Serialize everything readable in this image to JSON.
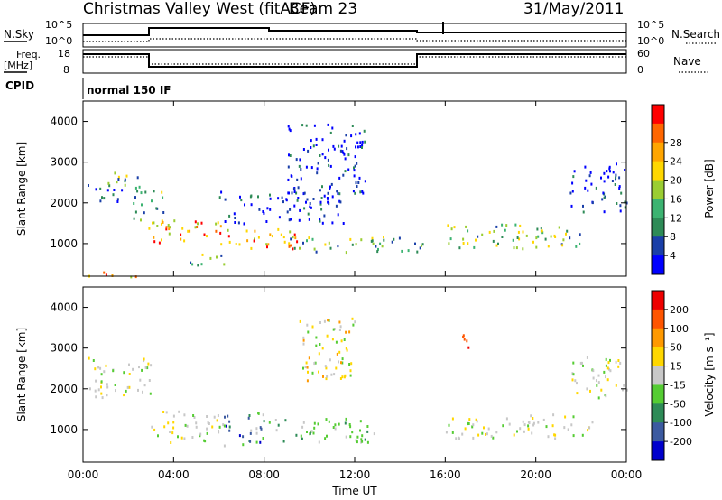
{
  "header": {
    "station": "Christmas Valley West (fitACF)",
    "beam": "Beam 23",
    "date": "31/May/2011"
  },
  "noise_panel": {
    "left_label": "N.Sky",
    "right_label": "N.Search",
    "left_ticks": [
      "10^5",
      "10^0"
    ],
    "right_ticks": [
      "10^5",
      "10^0"
    ]
  },
  "freq_panel": {
    "left_label_1": "Freq.",
    "left_label_2": "[MHz]",
    "right_label": "Nave",
    "left_ticks": [
      "18",
      "8"
    ],
    "right_ticks": [
      "60",
      "0"
    ]
  },
  "cpid": {
    "label": "CPID",
    "value": "normal 150 IF"
  },
  "chart_data": [
    {
      "type": "heatmap",
      "name": "power",
      "ylabel": "Slant Range [km]",
      "ylim": [
        200,
        4500
      ],
      "yticks": [
        "1000",
        "2000",
        "3000",
        "4000"
      ],
      "xlim_hours": [
        0,
        24
      ],
      "colorbar": {
        "label": "Power [dB]",
        "ticks": [
          "4",
          "8",
          "12",
          "16",
          "20",
          "24",
          "28"
        ],
        "colors": [
          "#0000ff",
          "#1a3fa8",
          "#2e8b57",
          "#3cb371",
          "#9acd32",
          "#ffd700",
          "#ffa500",
          "#ff6600",
          "#ff0000"
        ]
      },
      "bands": [
        {
          "t": [
            0.2,
            1.8
          ],
          "r": [
            2000,
            2500
          ],
          "level": "low"
        },
        {
          "t": [
            1.0,
            2.6
          ],
          "r": [
            2400,
            2800
          ],
          "level": "mid"
        },
        {
          "t": [
            2.2,
            3.6
          ],
          "r": [
            1400,
            2400
          ],
          "level": "mid"
        },
        {
          "t": [
            3.0,
            6.2
          ],
          "r": [
            1000,
            1600
          ],
          "level": "high"
        },
        {
          "t": [
            4.5,
            6.2
          ],
          "r": [
            500,
            800
          ],
          "level": "mid"
        },
        {
          "t": [
            6.0,
            9.5
          ],
          "r": [
            900,
            1400
          ],
          "level": "high"
        },
        {
          "t": [
            6.0,
            11.5
          ],
          "r": [
            1500,
            2300
          ],
          "level": "low"
        },
        {
          "t": [
            9.0,
            15.0
          ],
          "r": [
            800,
            1200
          ],
          "level": "mid"
        },
        {
          "t": [
            9.0,
            12.5
          ],
          "r": [
            2200,
            4000
          ],
          "level": "low"
        },
        {
          "t": [
            16.0,
            22.0
          ],
          "r": [
            900,
            1500
          ],
          "level": "mid"
        },
        {
          "t": [
            21.5,
            24.0
          ],
          "r": [
            1800,
            3000
          ],
          "level": "low"
        },
        {
          "t": [
            0.2,
            2.5
          ],
          "r": [
            200,
            350
          ],
          "level": "high"
        }
      ]
    },
    {
      "type": "heatmap",
      "name": "velocity",
      "ylabel": "Slant Range [km]",
      "xlabel": "Time UT",
      "ylim": [
        200,
        4500
      ],
      "yticks": [
        "1000",
        "2000",
        "3000",
        "4000"
      ],
      "xticks": [
        "00:00",
        "04:00",
        "08:00",
        "12:00",
        "16:00",
        "20:00",
        "00:00"
      ],
      "xlim_hours": [
        0,
        24
      ],
      "colorbar": {
        "label": "Velocity [m s⁻¹]",
        "ticks": [
          "200",
          "100",
          "50",
          "15",
          "-15",
          "-50",
          "-100",
          "-200"
        ],
        "colors": [
          "#0000cc",
          "#3c5aa0",
          "#2e8b57",
          "#55cc33",
          "#c8c8c8",
          "#ffd700",
          "#ff9900",
          "#ff5500",
          "#ee0000"
        ]
      },
      "bands": [
        {
          "t": [
            0.2,
            3.0
          ],
          "r": [
            1800,
            2800
          ],
          "level": "gray"
        },
        {
          "t": [
            3.0,
            6.0
          ],
          "r": [
            700,
            1500
          ],
          "level": "gray"
        },
        {
          "t": [
            6.0,
            8.0
          ],
          "r": [
            600,
            1500
          ],
          "level": "blue-green"
        },
        {
          "t": [
            8.0,
            13.0
          ],
          "r": [
            700,
            1300
          ],
          "level": "green"
        },
        {
          "t": [
            9.5,
            12.0
          ],
          "r": [
            2200,
            3800
          ],
          "level": "yellow"
        },
        {
          "t": [
            16.0,
            22.5
          ],
          "r": [
            800,
            1400
          ],
          "level": "gray"
        },
        {
          "t": [
            21.5,
            24.0
          ],
          "r": [
            1800,
            2800
          ],
          "level": "gray"
        },
        {
          "t": [
            16.2,
            17.0
          ],
          "r": [
            3000,
            3400
          ],
          "level": "red"
        }
      ]
    }
  ]
}
